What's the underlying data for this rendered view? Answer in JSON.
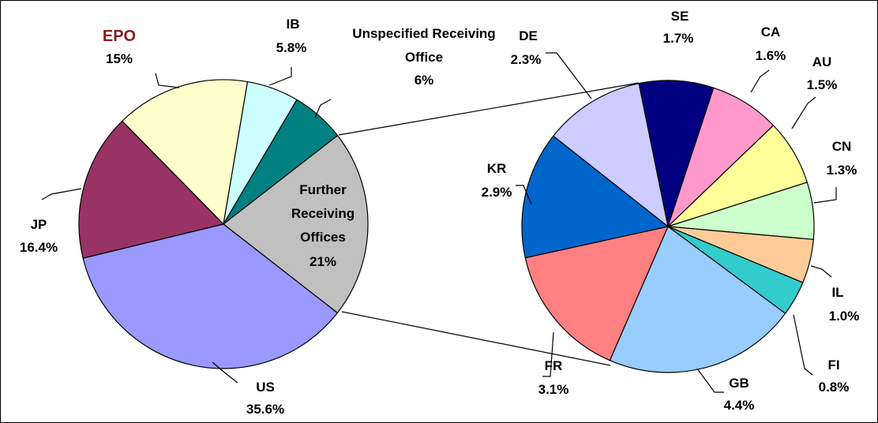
{
  "chart_data": [
    {
      "type": "pie",
      "categories": [
        "EPO",
        "IB",
        "Unspecified Receiving Office",
        "Further Receiving Offices",
        "US",
        "JP"
      ],
      "values": [
        15,
        5.8,
        6,
        21,
        35.6,
        16.4
      ],
      "value_labels": [
        "15%",
        "5.8%",
        "6%",
        "21%",
        "35.6%",
        "16.4%"
      ],
      "colors": [
        "#ffffcc",
        "#ccffff",
        "#008080",
        "#c0c0c0",
        "#9999ff",
        "#993366"
      ]
    },
    {
      "type": "pie",
      "categories": [
        "SE",
        "CA",
        "AU",
        "CN",
        "IL",
        "FI",
        "GB",
        "FR",
        "KR",
        "DE"
      ],
      "values": [
        1.7,
        1.6,
        1.5,
        1.3,
        1.0,
        0.8,
        4.4,
        3.1,
        2.9,
        2.3
      ],
      "value_labels": [
        "1.7%",
        "1.6%",
        "1.5%",
        "1.3%",
        "1.0%",
        "0.8%",
        "4.4%",
        "3.1%",
        "2.9%",
        "2.3%"
      ],
      "colors": [
        "#000080",
        "#ff99cc",
        "#ffff99",
        "#ccffcc",
        "#ffcc99",
        "#33cccc",
        "#99ccff",
        "#ff8080",
        "#0066cc",
        "#ccccff"
      ]
    }
  ]
}
